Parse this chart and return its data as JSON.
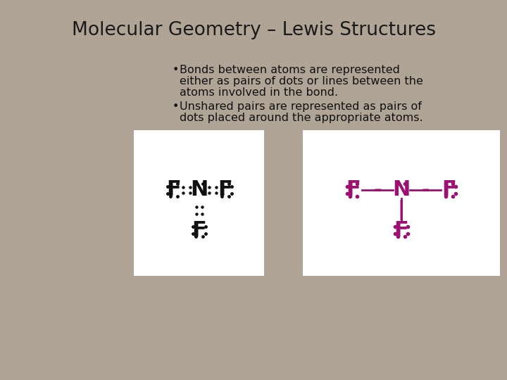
{
  "title": "Molecular Geometry – Lewis Structures",
  "bg_color": "#b0a496",
  "title_color": "#1a1a1a",
  "title_fontsize": 19,
  "bullet1_line1": "Bonds between atoms are represented",
  "bullet1_line2": "either as pairs of dots or lines between the",
  "bullet1_line3": "atoms involved in the bond.",
  "bullet2_line1": "Unshared pairs are represented as pairs of",
  "bullet2_line2": "dots placed around the appropriate atoms.",
  "bullet_fontsize": 11.5,
  "text_color": "#111111",
  "purple_color": "#9b1070",
  "black_color": "#111111",
  "white_color": "#ffffff"
}
